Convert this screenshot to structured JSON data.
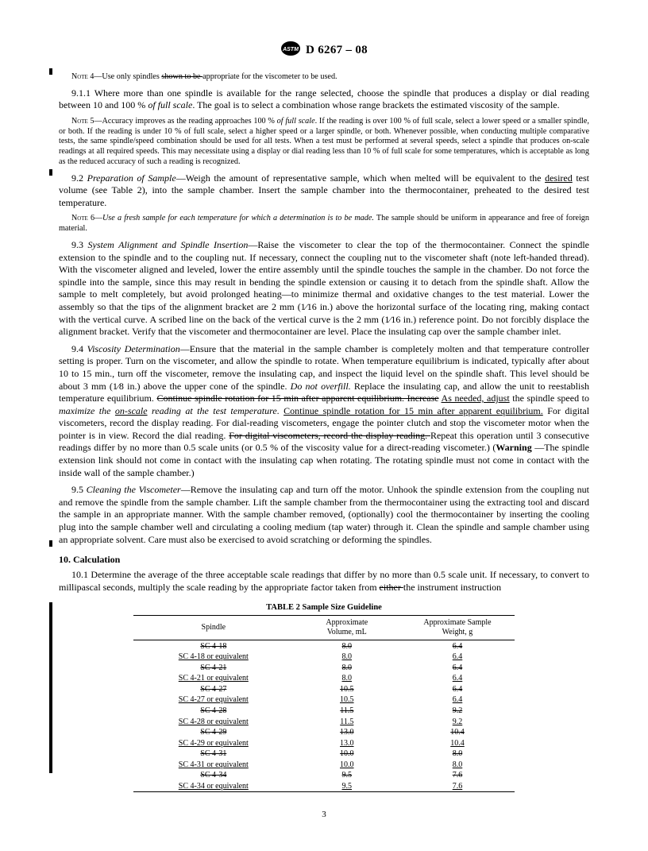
{
  "header": {
    "std_id": "D 6267 – 08"
  },
  "note4": {
    "label": "Note 4—",
    "t1": "Use only spindles ",
    "strike": "shown to be ",
    "t2": "appropriate for the viscometer to be used."
  },
  "p911": {
    "num": "9.1.1 ",
    "t1": "Where more than one spindle is available for the range selected, choose the spindle that produces a display or dial reading between 10 and 100 % ",
    "i1": "of full scale",
    "t2": ". The goal is to select a combination whose range brackets the estimated viscosity of the sample."
  },
  "note5": {
    "label": "Note 5—",
    "t1": "Accuracy improves as the reading approaches 100 % ",
    "i1": "of full scale",
    "t2": ". If the reading is over 100 % of full scale, select a lower speed or a smaller spindle, or both. If the reading is under 10 % of full scale, select a higher speed or a larger spindle, or both. Whenever possible, when conducting multiple comparative tests, the same spindle/speed combination should be used for all tests. When a test must be performed at several speeds, select a spindle that produces on-scale readings at all required speeds. This may necessitate using a display or dial reading less than 10 % of full scale for some temperatures, which is acceptable as long as the reduced accuracy of such a reading is recognized."
  },
  "p92": {
    "num": "9.2 ",
    "head": "Preparation of Sample",
    "t1": "—Weigh the amount of representative sample, which when melted will be equivalent to the ",
    "u1": "desired",
    "t2": " test volume (see Table 2), into the sample chamber. Insert the sample chamber into the thermocontainer, preheated to the desired test temperature."
  },
  "note6": {
    "label": "Note 6—",
    "i1": "Use a fresh sample for each temperature for which a determination is to be made.",
    "t1": " The sample should be uniform in appearance and free of foreign material."
  },
  "p93": {
    "num": "9.3 ",
    "head": "System Alignment and Spindle Insertion",
    "t1": "—Raise the viscometer to clear the top of the thermocontainer. Connect the spindle extension to the spindle and to the coupling nut. If necessary, connect the coupling nut to the viscometer shaft (note left-handed thread). With the viscometer aligned and leveled, lower the entire assembly until the spindle touches the sample in the chamber. Do not force the spindle into the sample, since this may result in bending the spindle extension or causing it to detach from the spindle shaft. Allow the sample to melt completely, but avoid prolonged heating—to minimize thermal and oxidative changes to the test material. Lower the assembly so that the tips of the alignment bracket are 2 mm (1⁄16 in.) above the horizontal surface of the locating ring, making contact with the vertical curve. A scribed line on the back of the vertical curve is the 2 mm (1⁄16 in.) reference point. Do not forcibly displace the alignment bracket. Verify that the viscometer and thermocontainer are level. Place the insulating cap over the sample chamber inlet."
  },
  "p94": {
    "num": "9.4 ",
    "head": "Viscosity Determination",
    "t1": "—Ensure that the material in the sample chamber is completely molten and that temperature controller setting is proper. Turn on the viscometer, and allow the spindle to rotate. When temperature equilibrium is indicated, typically after about 10 to 15 min., turn off the viscometer, remove the insulating cap, and inspect the liquid level on the spindle shaft. This level should be about 3 mm (1⁄8 in.) above the upper cone of the spindle. ",
    "i1": "Do not overfill.",
    "t2": " Replace the insulating cap, and allow the unit to reestablish temperature equilibrium. ",
    "s1": "Continue spindle rotation for 15 min after apparent equilibrium. Increase",
    "t3": " ",
    "u1": "As needed, adjust",
    "t4": " the spindle speed to ",
    "i2": "maximize the ",
    "ui2": "on-scale",
    "i3": " reading at the test temperature",
    "t5": ". ",
    "u2": "Continue spindle rotation for 15 min after apparent equilibrium.",
    "t6": " For digital viscometers, record the display reading. For dial-reading viscometers, engage the pointer clutch and stop the viscometer motor when the pointer is in view. Record the dial reading. ",
    "s2": "For digital viscometers, record the display reading. ",
    "t7": "Repeat this operation until 3 consecutive readings differ by no more than 0.5 scale units (or 0.5 % of the viscosity value for a direct-reading viscometer.) (",
    "b1": "Warning ",
    "t8": "—The spindle extension link should not come in contact with the insulating cap when rotating. The rotating spindle must not come in contact with the inside wall of the sample chamber.)"
  },
  "p95": {
    "num": "9.5 ",
    "head": "Cleaning the Viscometer",
    "t1": "—Remove the insulating cap and turn off the motor. Unhook the spindle extension from the coupling nut and remove the spindle from the sample chamber. Lift the sample chamber from the thermocontainer using the extracting tool and discard the sample in an appropriate manner. With the sample chamber removed, (optionally) cool the thermocontainer by inserting the cooling plug into the sample chamber well and circulating a cooling medium (tap water) through it. Clean the spindle and sample chamber using an appropriate solvent. Care must also be exercised to avoid scratching or deforming the spindles."
  },
  "sec10": {
    "head": "10. Calculation"
  },
  "p101": {
    "num": "10.1 ",
    "t1": "Determine the average of the three acceptable scale readings that differ by no more than 0.5 scale unit. If necessary, to convert to millipascal seconds, multiply the scale reading by the appropriate factor taken from ",
    "s1": "either ",
    "t2": "the instrument instruction"
  },
  "table": {
    "caption": "TABLE 2  Sample Size Guideline",
    "h1": "Spindle",
    "h2a": "Approximate",
    "h2b": "Volume, mL",
    "h3a": "Approximate Sample",
    "h3b": "Weight, g",
    "rows": [
      {
        "c1": "SC 4-18",
        "c2": "8.0",
        "c3": "6.4",
        "s": true
      },
      {
        "c1": "SC 4-18 or equivalent",
        "c2": "8.0",
        "c3": "6.4",
        "u": true
      },
      {
        "c1": "SC 4-21",
        "c2": "8.0",
        "c3": "6.4",
        "s": true
      },
      {
        "c1": "SC 4-21 or equivalent",
        "c2": "8.0",
        "c3": "6.4",
        "u": true
      },
      {
        "c1": "SC 4-27",
        "c2": "10.5",
        "c3": "6.4",
        "s": true
      },
      {
        "c1": "SC 4-27 or equivalent",
        "c2": "10.5",
        "c3": "6.4",
        "u": true
      },
      {
        "c1": "SC 4-28",
        "c2": "11.5",
        "c3": "9.2",
        "s": true
      },
      {
        "c1": "SC 4-28 or equivalent",
        "c2": "11.5",
        "c3": "9.2",
        "u": true
      },
      {
        "c1": "SC 4-29",
        "c2": "13.0",
        "c3": "10.4",
        "s": true
      },
      {
        "c1": "SC 4-29 or equivalent",
        "c2": "13.0",
        "c3": "10.4",
        "u": true
      },
      {
        "c1": "SC 4-31",
        "c2": "10.0",
        "c3": "8.0",
        "s": true
      },
      {
        "c1": "SC 4-31 or equivalent",
        "c2": "10.0",
        "c3": "8.0",
        "u": true
      },
      {
        "c1": "SC 4-34",
        "c2": "9.5",
        "c3": "7.6",
        "s": true
      },
      {
        "c1": "SC 4-34 or equivalent",
        "c2": "9.5",
        "c3": "7.6",
        "u": true
      }
    ]
  },
  "pagenum": "3"
}
